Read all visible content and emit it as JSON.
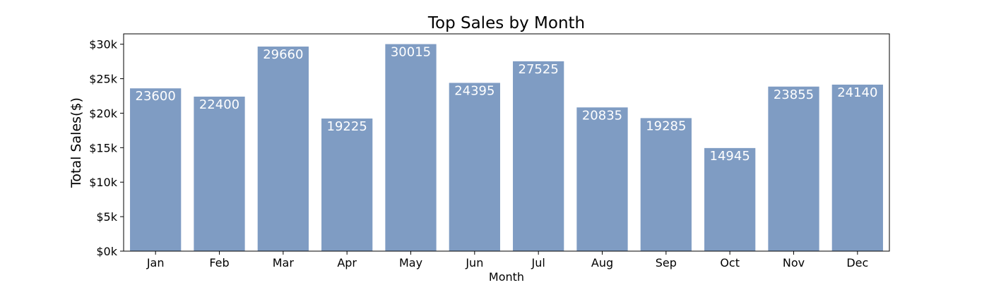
{
  "chart_data": {
    "type": "bar",
    "title": "Top Sales by Month",
    "xlabel": "Month",
    "ylabel": "Total Sales($)",
    "categories": [
      "Jan",
      "Feb",
      "Mar",
      "Apr",
      "May",
      "Jun",
      "Jul",
      "Aug",
      "Sep",
      "Oct",
      "Nov",
      "Dec"
    ],
    "values": [
      23600,
      22400,
      29660,
      19225,
      30015,
      24395,
      27525,
      20835,
      19285,
      14945,
      23855,
      24140
    ],
    "data_labels": [
      "23600",
      "22400",
      "29660",
      "19225",
      "30015",
      "24395",
      "27525",
      "20835",
      "19285",
      "14945",
      "23855",
      "24140"
    ],
    "ylim": [
      0,
      31500
    ],
    "yticks": [
      0,
      5000,
      10000,
      15000,
      20000,
      25000,
      30000
    ],
    "ytick_labels": [
      "$0k",
      "$5k",
      "$10k",
      "$15k",
      "$20k",
      "$25k",
      "$30k"
    ],
    "grid": false,
    "legend": "none",
    "bar_color": "#7f9cc3",
    "label_color": "#ffffff"
  }
}
